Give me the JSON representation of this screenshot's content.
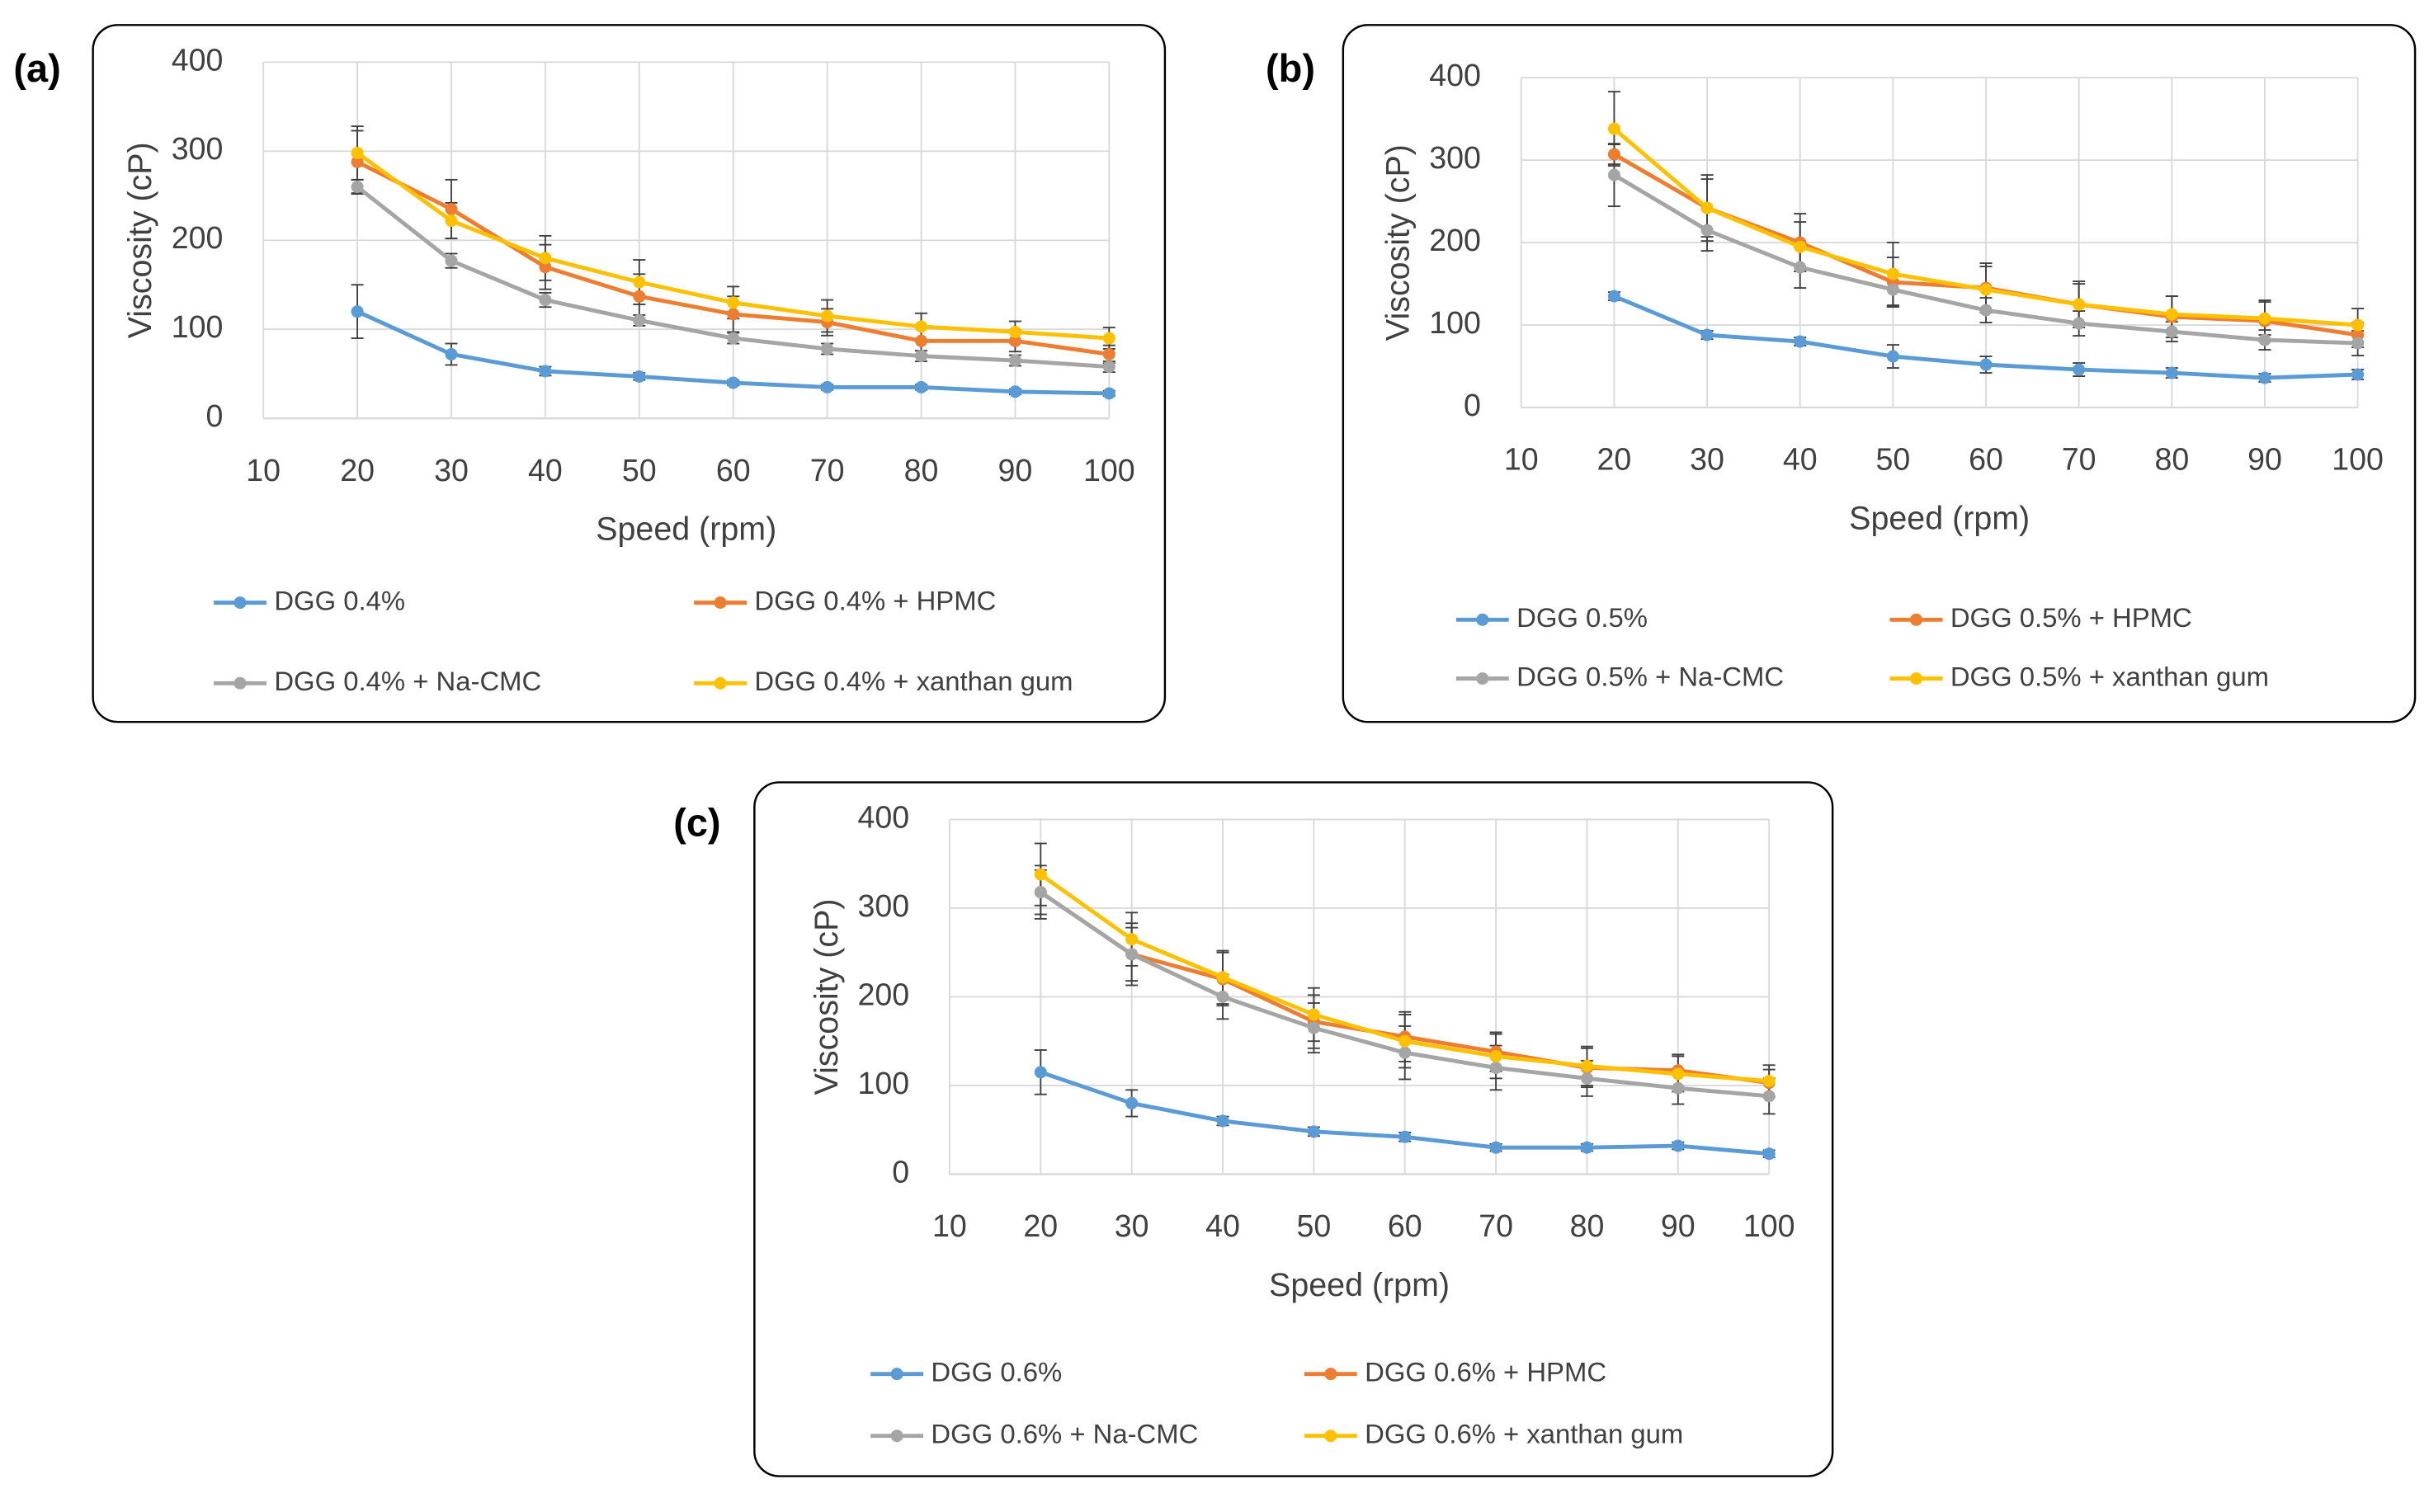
{
  "chart_data": [
    {
      "type": "line",
      "panel_label": "(a)",
      "xlabel": "Speed (rpm)",
      "ylabel": "Viscosity (cP)",
      "x": [
        20,
        30,
        40,
        50,
        60,
        70,
        80,
        90,
        100
      ],
      "xlim": [
        10,
        100
      ],
      "xticks": [
        10,
        20,
        30,
        40,
        50,
        60,
        70,
        80,
        90,
        100
      ],
      "ylim": [
        0,
        400
      ],
      "yticks": [
        0,
        100,
        200,
        300,
        400
      ],
      "grid": true,
      "series": [
        {
          "name": "DGG 0.4%",
          "color": "#5b9bd5",
          "values": [
            120,
            72,
            53,
            47,
            40,
            35,
            35,
            30,
            28
          ],
          "errors": [
            30,
            12,
            5,
            4,
            3,
            3,
            3,
            3,
            3
          ]
        },
        {
          "name": "DGG 0.4% + HPMC",
          "color": "#ed7d31",
          "values": [
            288,
            235,
            170,
            137,
            117,
            108,
            87,
            87,
            72
          ],
          "errors": [
            35,
            33,
            25,
            25,
            20,
            15,
            15,
            12,
            10
          ]
        },
        {
          "name": "DGG 0.4% + Na-CMC",
          "color": "#a5a5a5",
          "values": [
            260,
            177,
            133,
            110,
            90,
            78,
            70,
            65,
            58
          ],
          "errors": [
            8,
            8,
            8,
            6,
            6,
            6,
            6,
            6,
            6
          ]
        },
        {
          "name": "DGG 0.4% + xanthan gum",
          "color": "#ffc000",
          "values": [
            298,
            222,
            180,
            153,
            130,
            115,
            103,
            97,
            90
          ],
          "errors": [
            30,
            20,
            25,
            25,
            18,
            18,
            15,
            12,
            12
          ]
        }
      ]
    },
    {
      "type": "line",
      "panel_label": "(b)",
      "xlabel": "Speed (rpm)",
      "ylabel": "Viscosity (cP)",
      "x": [
        20,
        30,
        40,
        50,
        60,
        70,
        80,
        90,
        100
      ],
      "xlim": [
        10,
        100
      ],
      "xticks": [
        10,
        20,
        30,
        40,
        50,
        60,
        70,
        80,
        90,
        100
      ],
      "ylim": [
        0,
        400
      ],
      "yticks": [
        0,
        100,
        200,
        300,
        400
      ],
      "grid": true,
      "series": [
        {
          "name": "DGG 0.5%",
          "color": "#5b9bd5",
          "values": [
            135,
            88,
            80,
            62,
            52,
            46,
            42,
            36,
            40
          ],
          "errors": [
            5,
            5,
            5,
            14,
            10,
            8,
            6,
            5,
            6
          ]
        },
        {
          "name": "DGG 0.5% + HPMC",
          "color": "#ed7d31",
          "values": [
            307,
            242,
            200,
            152,
            145,
            125,
            110,
            105,
            88
          ],
          "errors": [
            12,
            40,
            35,
            30,
            30,
            28,
            25,
            25,
            15
          ]
        },
        {
          "name": "DGG 0.5% + Na-CMC",
          "color": "#a5a5a5",
          "values": [
            282,
            215,
            170,
            143,
            118,
            102,
            92,
            82,
            78
          ],
          "errors": [
            38,
            25,
            25,
            20,
            15,
            15,
            12,
            12,
            15
          ]
        },
        {
          "name": "DGG 0.5% + xanthan gum",
          "color": "#ffc000",
          "values": [
            338,
            242,
            195,
            162,
            143,
            125,
            113,
            108,
            100
          ],
          "errors": [
            45,
            35,
            30,
            38,
            28,
            25,
            22,
            20,
            20
          ]
        }
      ]
    },
    {
      "type": "line",
      "panel_label": "(c)",
      "xlabel": "Speed (rpm)",
      "ylabel": "Viscosity (cP)",
      "x": [
        20,
        30,
        40,
        50,
        60,
        70,
        80,
        90,
        100
      ],
      "xlim": [
        10,
        100
      ],
      "xticks": [
        10,
        20,
        30,
        40,
        50,
        60,
        70,
        80,
        90,
        100
      ],
      "ylim": [
        0,
        400
      ],
      "yticks": [
        0,
        100,
        200,
        300,
        400
      ],
      "grid": true,
      "series": [
        {
          "name": "DGG 0.6%",
          "color": "#5b9bd5",
          "values": [
            115,
            80,
            60,
            48,
            42,
            30,
            30,
            32,
            23
          ],
          "errors": [
            25,
            15,
            5,
            5,
            5,
            4,
            4,
            4,
            4
          ]
        },
        {
          "name": "DGG 0.6% + HPMC",
          "color": "#ed7d31",
          "values": [
            318,
            248,
            220,
            172,
            155,
            138,
            120,
            117,
            103
          ],
          "errors": [
            30,
            35,
            30,
            30,
            28,
            22,
            22,
            18,
            15
          ]
        },
        {
          "name": "DGG 0.6% + Na-CMC",
          "color": "#a5a5a5",
          "values": [
            318,
            248,
            200,
            165,
            137,
            120,
            108,
            97,
            88
          ],
          "errors": [
            25,
            30,
            25,
            28,
            30,
            25,
            20,
            18,
            20
          ]
        },
        {
          "name": "DGG 0.6% + xanthan gum",
          "color": "#ffc000",
          "values": [
            338,
            265,
            222,
            180,
            150,
            133,
            122,
            113,
            105
          ],
          "errors": [
            35,
            30,
            30,
            30,
            30,
            25,
            22,
            20,
            18
          ]
        }
      ]
    }
  ]
}
